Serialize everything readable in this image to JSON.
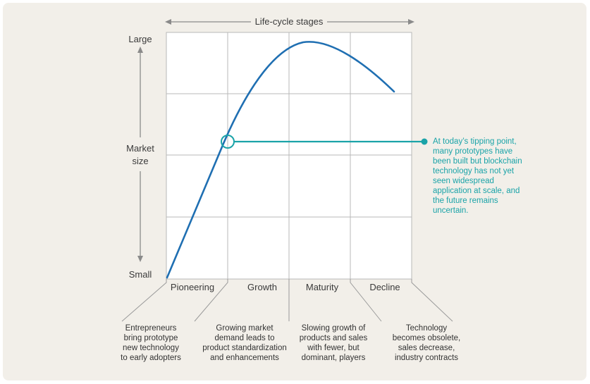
{
  "header": {
    "title": "Life-cycle stages"
  },
  "y_axis": {
    "top": "Large",
    "middle_line1": "Market",
    "middle_line2": "size",
    "bottom": "Small"
  },
  "stages": [
    "Pioneering",
    "Growth",
    "Maturity",
    "Decline"
  ],
  "descriptions": [
    {
      "l1": "Entrepreneurs",
      "l2": "bring prototype",
      "l3": "new technology",
      "l4": "to early adopters"
    },
    {
      "l1": "Growing market",
      "l2": "demand leads to",
      "l3": "product standardization",
      "l4": "and enhancements"
    },
    {
      "l1": "Slowing growth of",
      "l2": "products and sales",
      "l3": "with fewer, but",
      "l4": "dominant, players"
    },
    {
      "l1": "Technology",
      "l2": "becomes obsolete,",
      "l3": "sales decrease,",
      "l4": "industry contracts"
    }
  ],
  "annotation": {
    "text": "At today’s tipping point, many prototypes have been built but blockchain technology has not yet seen widespread application at scale, and the future remains uncertain."
  },
  "colors": {
    "curve": "#1f6fb2",
    "accent": "#1aa3a8",
    "grid": "#b8b8b8",
    "panel": "#f2efe9"
  }
}
